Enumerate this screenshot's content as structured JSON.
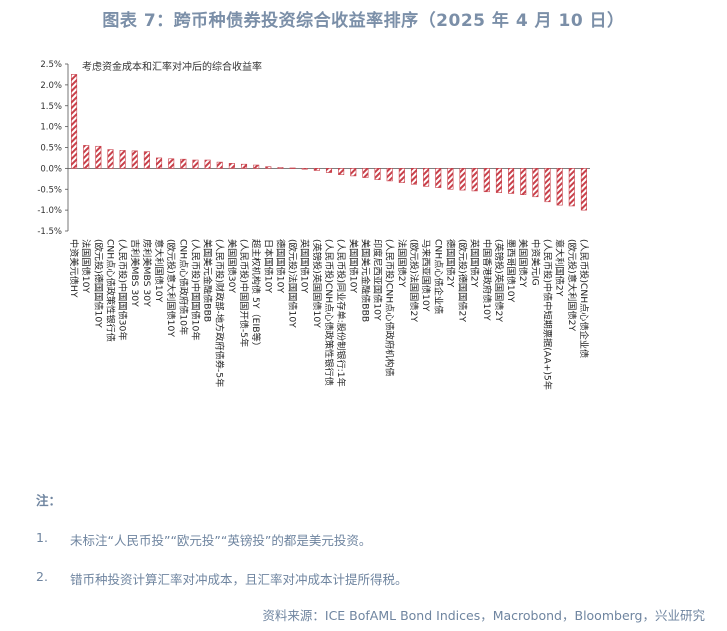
{
  "figure_title": "图表 7：跨币种债券投资综合收益率排序（2025 年 4 月 10 日）",
  "notes": {
    "label": "注：",
    "items": [
      {
        "num": "1.",
        "text": "未标注“人民币投”“欧元投”“英镑投”的都是美元投资。"
      },
      {
        "num": "2.",
        "text": "错币种投资计算汇率对冲成本，且汇率对冲成本计提所得税。"
      }
    ]
  },
  "source": "资料来源：ICE BofAML Bond Indices，Macrobond，Bloomberg，兴业研究",
  "chart_data": {
    "type": "bar",
    "title": "",
    "legend": [
      "考虑资金成本和汇率对冲后的综合收益率"
    ],
    "series_color": "#c8404a",
    "ylim": [
      -1.5,
      2.5
    ],
    "yticks": [
      "2.5%",
      "2.0%",
      "1.5%",
      "1.0%",
      "0.5%",
      "0.0%",
      "-0.5%",
      "-1.0%",
      "-1.5%"
    ],
    "categories": [
      "中资美元债HY",
      "法国国债10Y",
      "(欧元投)德国国债10Y",
      "CNH点心债政策性银行债",
      "(人民币投)中国国债30年",
      "吉利美MBS 30Y",
      "房利美MBS 30Y",
      "意大利国债10Y",
      "(欧元投)意大利国债10Y",
      "CNH点心债政府债10年",
      "(人民币投)中国国债10年",
      "美国美元金融债BBB",
      "(人民币投)财政部-地方政府债券-5年",
      "美国国债30Y",
      "(人民币投)中国国开债-5年",
      "超主权机构债 5Y（EIB等）",
      "日本国债10Y",
      "德国国债10Y",
      "(欧元投)法国国债10Y",
      "英国国债10Y",
      "(英镑投)英国国债10Y",
      "(人民币投)CNH点心债政策性银行债",
      "(人民币投)同业存单:股份制银行:1年",
      "美国国债10Y",
      "美国美元金融债BBB",
      "印度尼西亚国债10Y",
      "(人民币投)CNH点心债政府机构债",
      "法国国债2Y",
      "(欧元投)法国国债2Y",
      "马来西亚国债10Y",
      "CNH点心债企业债",
      "德国国债2Y",
      "(欧元投)德国国债2Y",
      "英国国债2Y",
      "中国香港政府债10Y",
      "(英镑投)英国国债2Y",
      "墨西哥国债10Y",
      "美国国债2Y",
      "中资美元IG",
      "(人民币投)中债中短期票据(AA+)5年",
      "意大利国债2Y",
      "(欧元投)意大利国债2Y",
      "(人民币投)CNH点心债企业债"
    ],
    "values": [
      2.25,
      0.55,
      0.53,
      0.45,
      0.43,
      0.42,
      0.4,
      0.25,
      0.23,
      0.22,
      0.2,
      0.2,
      0.15,
      0.12,
      0.1,
      0.08,
      0.04,
      0.02,
      0.01,
      -0.02,
      -0.05,
      -0.1,
      -0.15,
      -0.18,
      -0.22,
      -0.27,
      -0.3,
      -0.34,
      -0.38,
      -0.43,
      -0.46,
      -0.5,
      -0.52,
      -0.54,
      -0.56,
      -0.58,
      -0.6,
      -0.63,
      -0.68,
      -0.8,
      -0.88,
      -0.9,
      -1.0
    ]
  }
}
